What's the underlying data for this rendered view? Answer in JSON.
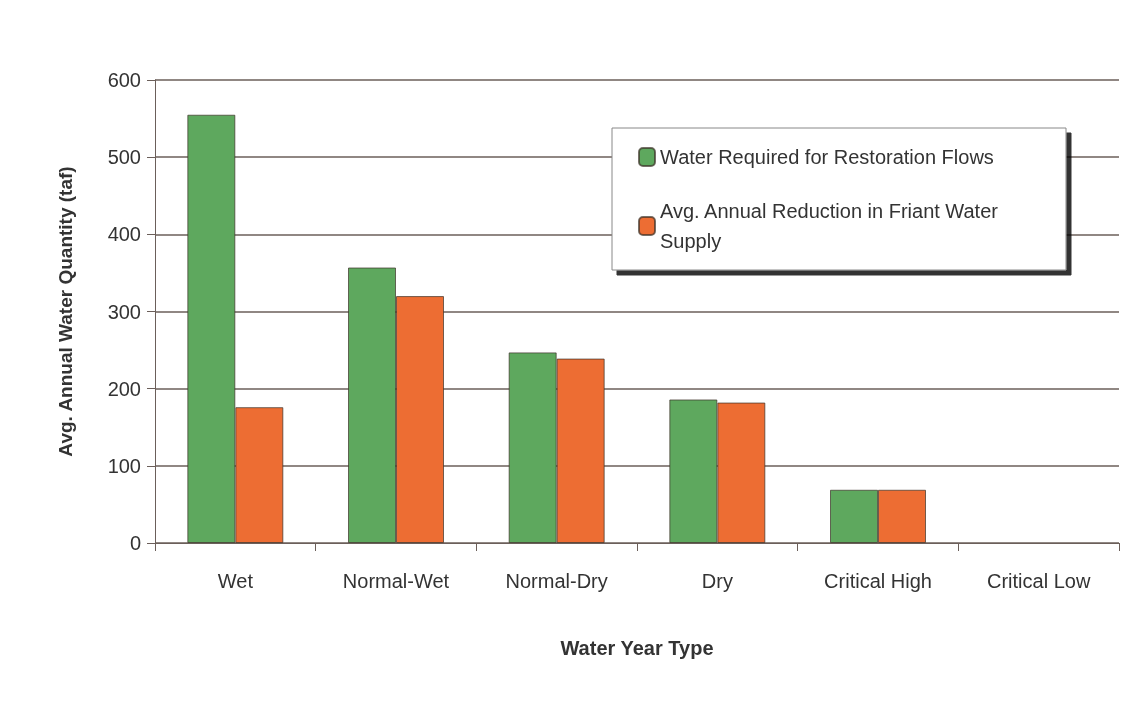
{
  "chart_data": {
    "type": "bar",
    "xlabel": "Water Year Type",
    "ylabel": "Avg. Annual Water Quantity (taf)",
    "categories": [
      "Wet",
      "Normal-Wet",
      "Normal-Dry",
      "Dry",
      "Critical High",
      "Critical Low"
    ],
    "series": [
      {
        "name": "Water Required for Restoration Flows",
        "color": "#5ea85e",
        "values": [
          555,
          357,
          247,
          186,
          69,
          null
        ]
      },
      {
        "name": "Avg. Annual Reduction in Friant Water Supply",
        "color": "#ed6d33",
        "values": [
          176,
          320,
          239,
          182,
          69,
          null
        ]
      }
    ],
    "ylim": [
      0,
      600
    ],
    "yticks": [
      0,
      100,
      200,
      300,
      400,
      500,
      600
    ],
    "grid": "y",
    "legend": "top right"
  }
}
